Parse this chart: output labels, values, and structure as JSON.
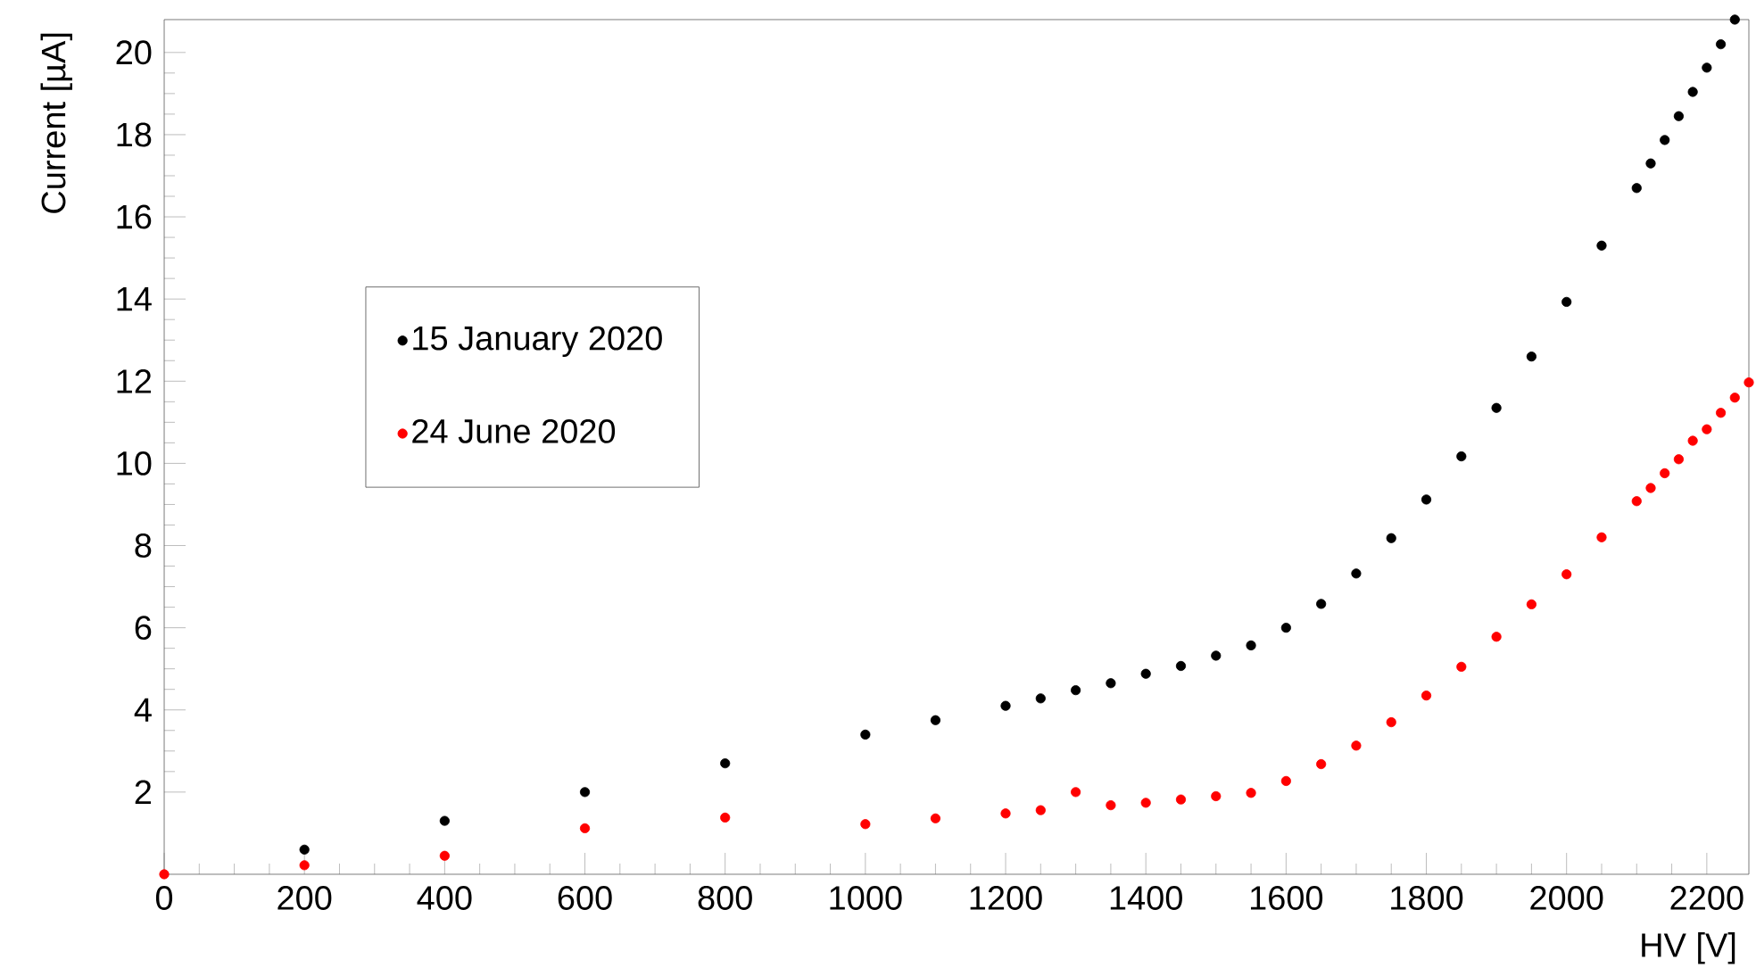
{
  "chart_data": {
    "type": "scatter",
    "xlabel": "HV [V]",
    "ylabel": "Current [µA]",
    "xlim": [
      0,
      2260
    ],
    "ylim": [
      0,
      20.8
    ],
    "xticks": [
      0,
      200,
      400,
      600,
      800,
      1000,
      1200,
      1400,
      1600,
      1800,
      2000,
      2200
    ],
    "yticks": [
      2,
      4,
      6,
      8,
      10,
      12,
      14,
      16,
      18,
      20
    ],
    "marker": "circle",
    "grid": false,
    "legend": "left",
    "series": [
      {
        "name": "15 January 2020",
        "color": "#000000",
        "x": [
          200,
          400,
          600,
          800,
          1000,
          1100,
          1200,
          1250,
          1300,
          1350,
          1400,
          1450,
          1500,
          1550,
          1600,
          1650,
          1700,
          1750,
          1800,
          1850,
          1900,
          1950,
          2000,
          2050,
          2100,
          2120,
          2140,
          2160,
          2180,
          2200,
          2220,
          2240
        ],
        "values": [
          0.6,
          1.3,
          2.0,
          2.7,
          3.4,
          3.75,
          4.1,
          4.28,
          4.48,
          4.65,
          4.88,
          5.07,
          5.32,
          5.57,
          6.0,
          6.58,
          7.32,
          8.18,
          9.12,
          10.17,
          11.35,
          12.6,
          13.93,
          15.3,
          16.7,
          17.3,
          17.87,
          18.45,
          19.04,
          19.63,
          20.2,
          20.8
        ]
      },
      {
        "name": "24 June 2020",
        "color": "#ff0000",
        "x": [
          0,
          200,
          400,
          600,
          800,
          1000,
          1100,
          1200,
          1250,
          1300,
          1350,
          1400,
          1450,
          1500,
          1550,
          1600,
          1650,
          1700,
          1750,
          1800,
          1850,
          1900,
          1950,
          2000,
          2050,
          2100,
          2120,
          2140,
          2160,
          2180,
          2200,
          2220,
          2240,
          2260
        ],
        "values": [
          0,
          0.22,
          0.45,
          1.12,
          1.38,
          1.22,
          1.36,
          1.48,
          1.56,
          2.0,
          1.68,
          1.74,
          1.82,
          1.9,
          1.98,
          2.27,
          2.68,
          3.13,
          3.7,
          4.35,
          5.05,
          5.78,
          6.57,
          7.3,
          8.2,
          9.08,
          9.4,
          9.76,
          10.1,
          10.55,
          10.83,
          11.23,
          11.6,
          11.97
        ]
      }
    ]
  }
}
